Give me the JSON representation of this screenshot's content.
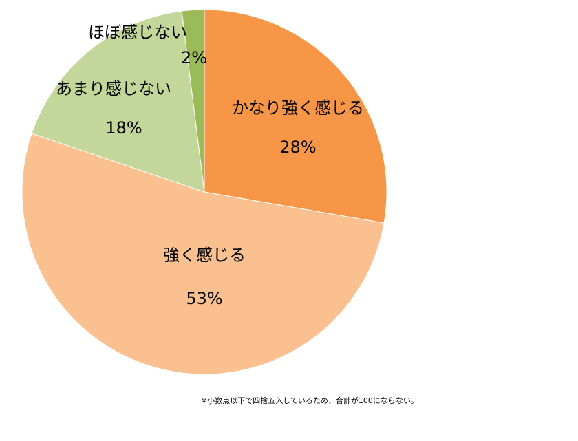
{
  "chart_data": {
    "type": "pie",
    "categories": [
      "かなり強く感じる",
      "強く感じる",
      "あまり感じない",
      "ほぼ感じない"
    ],
    "values": [
      28,
      53,
      18,
      2
    ],
    "value_labels": [
      "28%",
      "53%",
      "18%",
      "2%"
    ],
    "colors": [
      "#f79646",
      "#fac090",
      "#c4d79b",
      "#9bbb59"
    ],
    "note": "※小数点以下で四捨五入しているため、合計が100にならない。"
  }
}
